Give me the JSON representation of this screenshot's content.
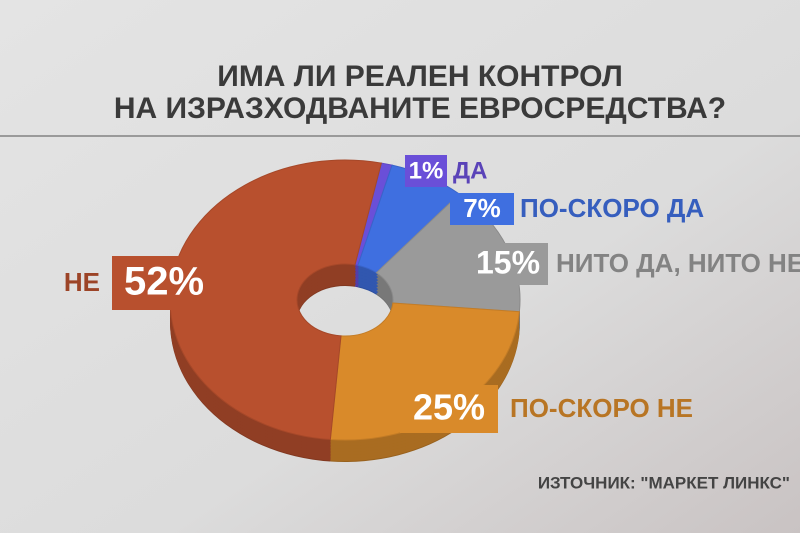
{
  "chart_data": {
    "type": "donut",
    "title": [
      "ИМА ЛИ РЕАЛЕН КОНТРОЛ",
      "НА ИЗРАЗХОДВАНИТЕ ЕВРОСРЕДСТВА?"
    ],
    "categories": [
      "ДА",
      "ПО-СКОРО ДА",
      "НИТО ДА, НИТО НЕ",
      "ПО-СКОРО НЕ",
      "НЕ"
    ],
    "values": [
      1,
      7,
      15,
      25,
      52
    ],
    "value_labels": [
      "1%",
      "7%",
      "15%",
      "25%",
      "52%"
    ],
    "colors": [
      "#6a4fd8",
      "#3f6fe0",
      "#9a9a9a",
      "#d98a2a",
      "#b8502e"
    ],
    "source": "ИЗТОЧНИК: \"МАРКЕТ ЛИНКС\""
  }
}
